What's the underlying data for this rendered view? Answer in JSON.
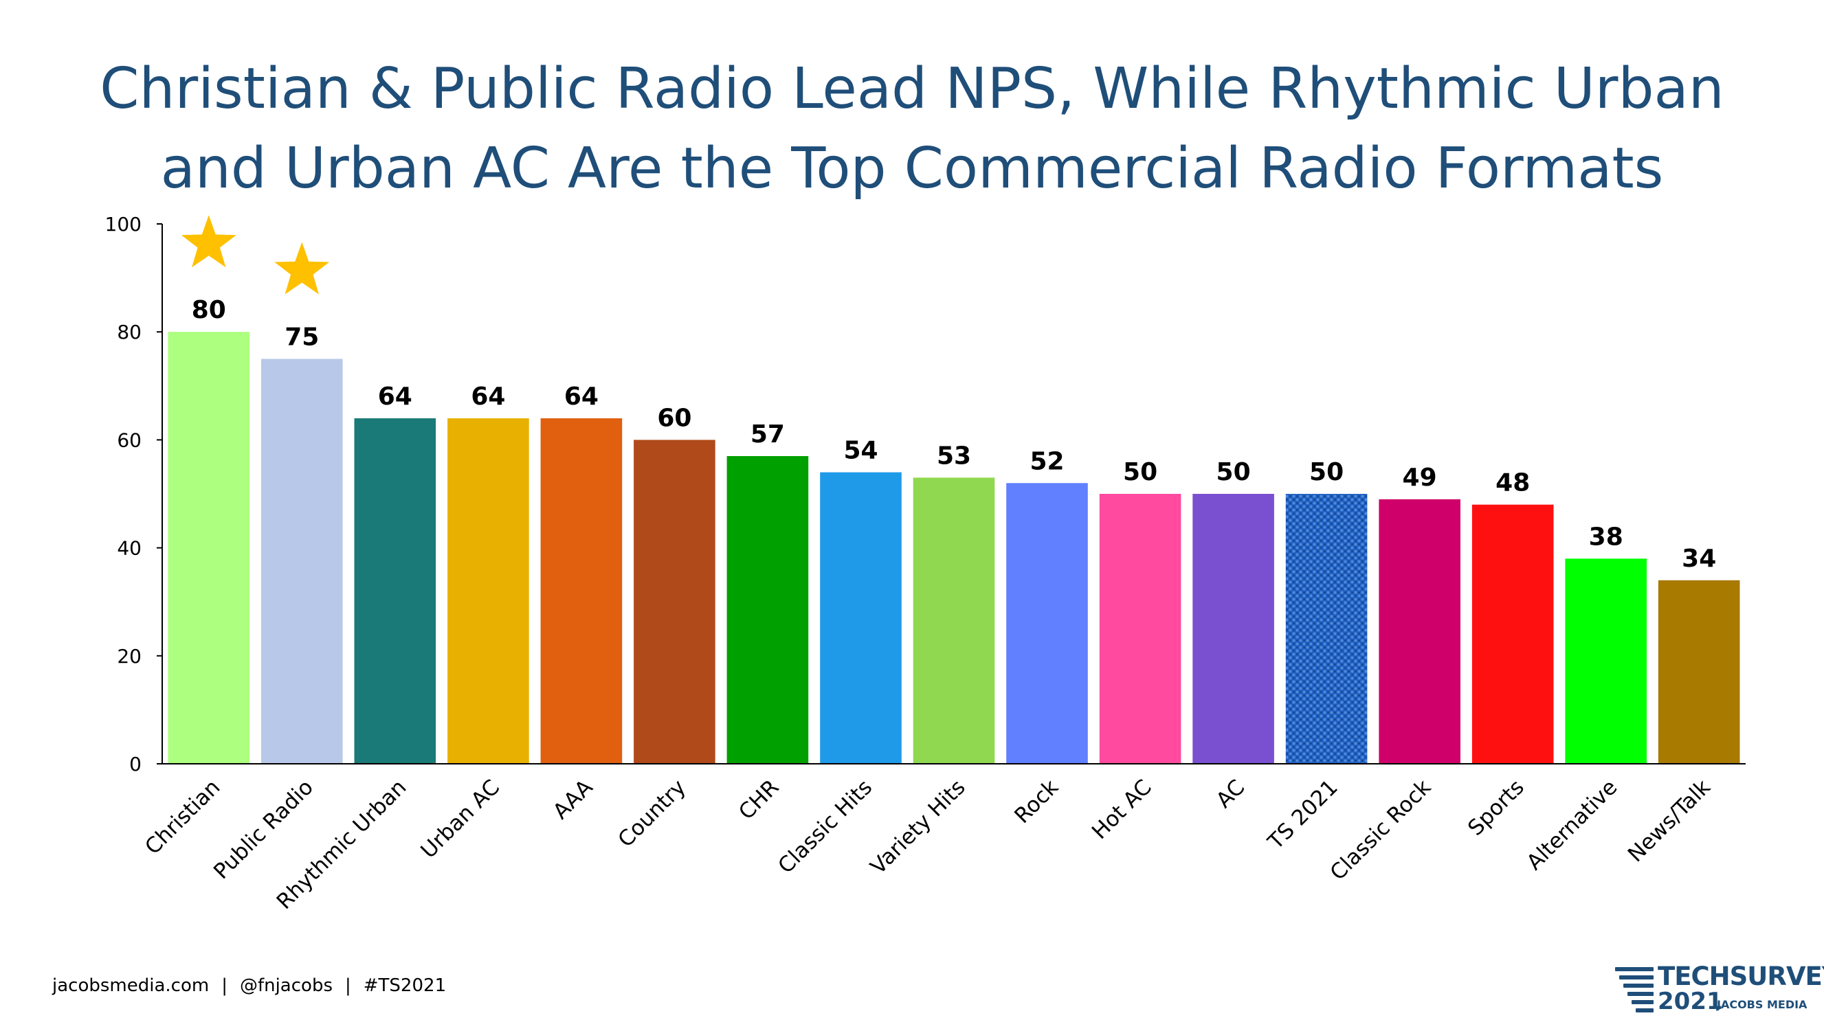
{
  "title": {
    "line1": "Christian & Public Radio Lead NPS, While Rhythmic Urban",
    "line2": "and Urban AC Are the Top Commercial Radio Formats"
  },
  "chart_data": {
    "type": "bar",
    "title": "Christian & Public Radio Lead NPS, While Rhythmic Urban and Urban AC Are the Top Commercial Radio Formats",
    "xlabel": "",
    "ylabel": "",
    "ylim": [
      0,
      100
    ],
    "yticks": [
      0,
      20,
      40,
      60,
      80,
      100
    ],
    "grid": false,
    "legend": "none",
    "data_labels": true,
    "categories": [
      "Christian",
      "Public Radio",
      "Rhythmic Urban",
      "Urban AC",
      "AAA",
      "Country",
      "CHR",
      "Classic Hits",
      "Variety Hits",
      "Rock",
      "Hot AC",
      "AC",
      "TS 2021",
      "Classic Rock",
      "Sports",
      "Alternative",
      "News/Talk"
    ],
    "values": [
      80,
      75,
      64,
      64,
      64,
      60,
      57,
      54,
      53,
      52,
      50,
      50,
      50,
      49,
      48,
      38,
      34
    ],
    "colors": [
      "#adff7f",
      "#b8c8e8",
      "#1a7a78",
      "#e8b000",
      "#e06010",
      "#b04a1a",
      "#00a000",
      "#1e9ae8",
      "#90d850",
      "#6080ff",
      "#ff4aa0",
      "#7a50d0",
      "#2060c0",
      "#d0006a",
      "#ff1010",
      "#00ff00",
      "#a87a00"
    ],
    "patterned": [
      "TS 2021"
    ],
    "starred": [
      "Christian",
      "Public Radio"
    ],
    "star_color": "#ffc000"
  },
  "footer": {
    "site": "jacobsmedia.com",
    "handle": "@fnjacobs",
    "hashtag": "#TS2021",
    "separator": "|"
  },
  "brand": {
    "name": "TECHSURVEY",
    "year": "2021",
    "company": "JACOBS MEDIA",
    "color": "#1f4e79"
  }
}
